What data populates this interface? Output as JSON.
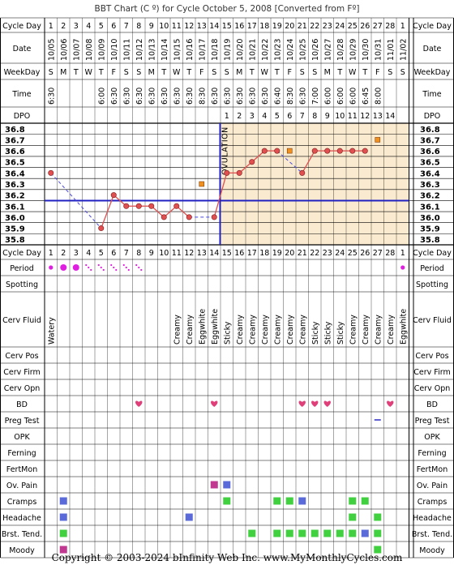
{
  "chart_title": "BBT Chart (C º) for Cycle October 5, 2008  [Converted from Fº]",
  "footer": "Copyright © 2003-2024 bInfinity Web Inc.     www.MyMonthlyCycles.com",
  "row_labels": {
    "cycle_day": "Cycle Day",
    "date": "Date",
    "weekday": "WeekDay",
    "time": "Time",
    "dpo": "DPO",
    "period": "Period",
    "spotting": "Spotting",
    "cerv_fluid": "Cerv Fluid",
    "cerv_pos": "Cerv Pos",
    "cerv_firm": "Cerv Firm",
    "cerv_opn": "Cerv Opn",
    "bd": "BD",
    "preg_test": "Preg Test",
    "opk": "OPK",
    "ferning": "Ferning",
    "fertmon": "FertMon",
    "ov_pain": "Ov. Pain",
    "cramps": "Cramps",
    "headache": "Headache",
    "brst_tend": "Brst. Tend.",
    "moody": "Moody"
  },
  "ovulation_label": "OVULATION",
  "colors": {
    "grid": "#000000",
    "pre_ov_bg": "#ffffff",
    "post_ov_bg": "#faebd0",
    "temp_line": "#e05050",
    "temp_point_fill": "#e05050",
    "gap_line": "#4a4ae0",
    "coverline": "#2020c0",
    "ovulation_line": "#2020c0",
    "discarded_fill": "#f09020",
    "period_dot": "#e020e0",
    "heart": "#e0407a",
    "preg_test_line": "#6060d0",
    "symptom_green": "#40d040",
    "symptom_blue": "#5a6ad8",
    "symptom_magenta": "#c03890"
  },
  "chart_data": {
    "type": "line",
    "title": "BBT Chart (C º) for Cycle October 5, 2008  [Converted from Fº]",
    "ylabel": "",
    "xlabel": "Cycle Day",
    "ylim": [
      35.8,
      36.8
    ],
    "y_ticks": [
      "36.8",
      "36.7",
      "36.6",
      "36.5",
      "36.4",
      "36.3",
      "36.2",
      "36.1",
      "36.0",
      "35.9",
      "35.8"
    ],
    "coverline": 36.15,
    "ovulation_day": 14,
    "cycle_days": [
      "1",
      "2",
      "3",
      "4",
      "5",
      "6",
      "7",
      "8",
      "9",
      "10",
      "11",
      "12",
      "13",
      "14",
      "15",
      "16",
      "17",
      "18",
      "19",
      "20",
      "21",
      "22",
      "23",
      "24",
      "25",
      "26",
      "27",
      "28",
      "1"
    ],
    "dates": [
      "10/05",
      "10/06",
      "10/07",
      "10/08",
      "10/09",
      "10/10",
      "10/11",
      "10/12",
      "10/13",
      "10/14",
      "10/15",
      "10/16",
      "10/17",
      "10/18",
      "10/19",
      "10/20",
      "10/21",
      "10/22",
      "10/23",
      "10/24",
      "10/25",
      "10/26",
      "10/27",
      "10/28",
      "10/29",
      "10/30",
      "10/31",
      "11/01",
      "11/02"
    ],
    "weekdays": [
      "S",
      "M",
      "T",
      "W",
      "T",
      "F",
      "S",
      "S",
      "M",
      "T",
      "W",
      "T",
      "F",
      "S",
      "S",
      "M",
      "T",
      "W",
      "T",
      "F",
      "S",
      "S",
      "M",
      "T",
      "W",
      "T",
      "F",
      "S",
      "S"
    ],
    "times": [
      "6:30",
      "",
      "",
      "",
      "6:00",
      "6:30",
      "6:30",
      "6:30",
      "6:30",
      "6:30",
      "6:30",
      "6:30",
      "8:30",
      "6:30",
      "6:30",
      "6:30",
      "6:30",
      "6:30",
      "6:40",
      "8:30",
      "6:30",
      "7:00",
      "6:00",
      "6:00",
      "6:00",
      "6:45",
      "8:00",
      "",
      ""
    ],
    "dpo": [
      "",
      "",
      "",
      "",
      "",
      "",
      "",
      "",
      "",
      "",
      "",
      "",
      "",
      "",
      "1",
      "2",
      "3",
      "4",
      "5",
      "6",
      "7",
      "8",
      "9",
      "10",
      "11",
      "12",
      "13",
      "14",
      ""
    ],
    "temps": [
      36.4,
      null,
      null,
      null,
      35.9,
      36.2,
      36.1,
      36.1,
      36.1,
      36.0,
      36.1,
      36.0,
      null,
      36.0,
      36.4,
      36.4,
      36.5,
      36.6,
      36.6,
      null,
      36.4,
      36.6,
      36.6,
      36.6,
      36.6,
      36.6,
      null,
      null,
      null
    ],
    "discarded": [
      null,
      null,
      null,
      null,
      null,
      null,
      null,
      null,
      null,
      null,
      null,
      null,
      36.3,
      null,
      null,
      null,
      null,
      null,
      null,
      36.6,
      null,
      null,
      null,
      null,
      null,
      null,
      36.7,
      null,
      null
    ],
    "period": [
      "heavy",
      "heavy",
      "heavy",
      "light",
      "light",
      "light",
      "light",
      "light",
      "",
      "",
      "",
      "",
      "",
      "",
      "",
      "",
      "",
      "",
      "",
      "",
      "",
      "",
      "",
      "",
      "",
      "",
      "",
      "",
      "heavy"
    ],
    "cerv_fluid": [
      "Watery",
      "",
      "",
      "",
      "",
      "",
      "",
      "",
      "",
      "",
      "Creamy",
      "Creamy",
      "Eggwhite",
      "Eggwhite",
      "Sticky",
      "Creamy",
      "Creamy",
      "Creamy",
      "Creamy",
      "Creamy",
      "Creamy",
      "Sticky",
      "Sticky",
      "Sticky",
      "Creamy",
      "Creamy",
      "Creamy",
      "Creamy",
      "Eggwhite"
    ],
    "bd": [
      false,
      false,
      false,
      false,
      false,
      false,
      false,
      true,
      false,
      false,
      false,
      false,
      false,
      true,
      false,
      false,
      false,
      false,
      false,
      false,
      true,
      true,
      true,
      false,
      false,
      false,
      false,
      true,
      false
    ],
    "preg_test_days": [
      27
    ],
    "ov_pain": {
      "14": "magenta",
      "15": "blue"
    },
    "cramps": {
      "2": "blue",
      "15": "green",
      "19": "green",
      "20": "green",
      "21": "blue",
      "25": "green",
      "26": "green"
    },
    "headache": {
      "2": "blue",
      "12": "blue",
      "25": "green",
      "27": "green"
    },
    "brst_tend": {
      "2": "green",
      "17": "green",
      "19": "green",
      "20": "green",
      "21": "green",
      "22": "green",
      "23": "green",
      "24": "green",
      "25": "green",
      "26": "blue",
      "27": "green"
    },
    "moody": {
      "2": "magenta",
      "27": "green"
    }
  }
}
